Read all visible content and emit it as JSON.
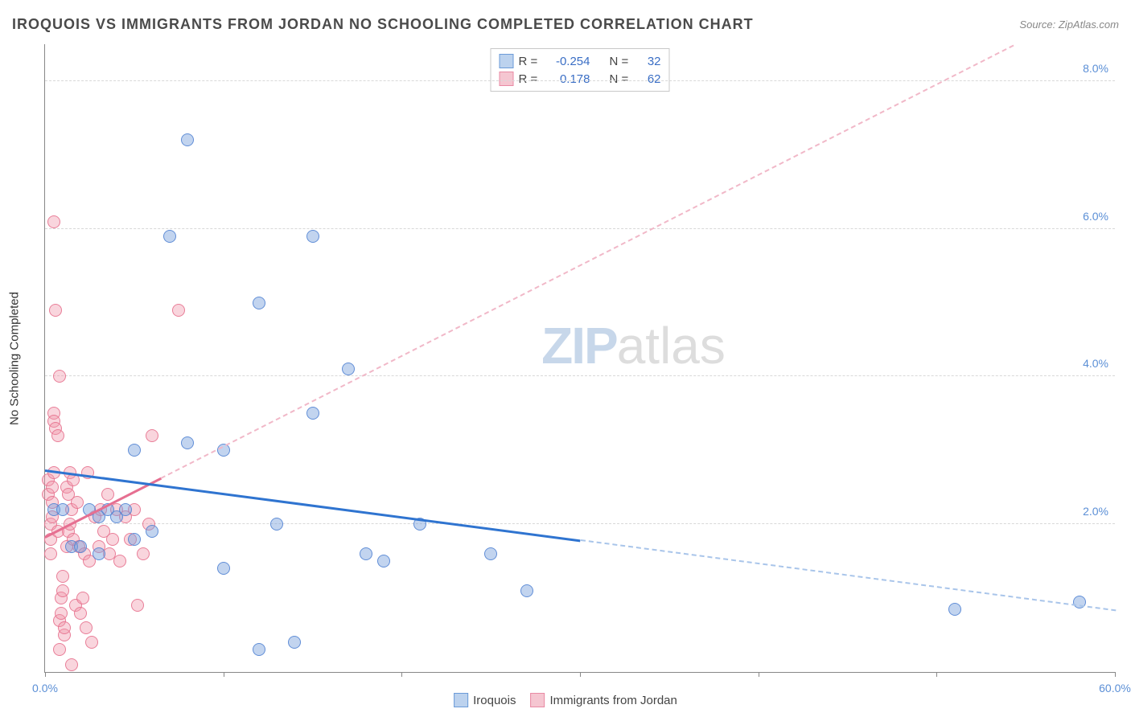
{
  "title": "IROQUOIS VS IMMIGRANTS FROM JORDAN NO SCHOOLING COMPLETED CORRELATION CHART",
  "source_label": "Source:",
  "source_name": "ZipAtlas.com",
  "y_axis_label": "No Schooling Completed",
  "watermark_bold": "ZIP",
  "watermark_rest": "atlas",
  "chart": {
    "type": "scatter",
    "background_color": "#ffffff",
    "grid_color": "#d8d8d8",
    "axis_color": "#888888",
    "xlim": [
      0,
      60
    ],
    "ylim": [
      0,
      8.5
    ],
    "x_ticks": [
      0,
      10,
      20,
      30,
      40,
      50,
      60
    ],
    "x_tick_labels": {
      "0": "0.0%",
      "60": "60.0%"
    },
    "y_ticks": [
      2,
      4,
      6,
      8
    ],
    "y_tick_labels": {
      "2": "2.0%",
      "4": "4.0%",
      "6": "6.0%",
      "8": "8.0%"
    },
    "tick_label_color": "#5b8fd6",
    "tick_fontsize": 14,
    "series": [
      {
        "name": "Iroquois",
        "marker_fill": "rgba(120,160,220,0.45)",
        "marker_stroke": "rgba(80,130,210,0.85)",
        "swatch_fill": "#bcd2ee",
        "swatch_stroke": "#6b9bd8",
        "trend_color": "#2f74d0",
        "trend_style": "solid",
        "trend_dash_color": "#a9c5ea",
        "r_value": "-0.254",
        "n_value": "32",
        "trendline": {
          "x1": 0,
          "y1": 2.75,
          "x2": 60,
          "y2": 0.85,
          "dash_from_x": 30
        },
        "points": [
          [
            0.5,
            2.2
          ],
          [
            1,
            2.2
          ],
          [
            1.5,
            1.7
          ],
          [
            2,
            1.7
          ],
          [
            2.5,
            2.2
          ],
          [
            3,
            2.1
          ],
          [
            3,
            1.6
          ],
          [
            3.5,
            2.2
          ],
          [
            4,
            2.1
          ],
          [
            4.5,
            2.2
          ],
          [
            5,
            1.8
          ],
          [
            5,
            3.0
          ],
          [
            6,
            1.9
          ],
          [
            7,
            5.9
          ],
          [
            8,
            7.2
          ],
          [
            8,
            3.1
          ],
          [
            10,
            3.0
          ],
          [
            10,
            1.4
          ],
          [
            12,
            5.0
          ],
          [
            12,
            0.3
          ],
          [
            13,
            2.0
          ],
          [
            14,
            0.4
          ],
          [
            15,
            5.9
          ],
          [
            15,
            3.5
          ],
          [
            17,
            4.1
          ],
          [
            18,
            1.6
          ],
          [
            19,
            1.5
          ],
          [
            21,
            2.0
          ],
          [
            25,
            1.6
          ],
          [
            27,
            1.1
          ],
          [
            51,
            0.85
          ],
          [
            58,
            0.95
          ]
        ]
      },
      {
        "name": "Immigrants from Jordan",
        "marker_fill": "rgba(240,150,170,0.40)",
        "marker_stroke": "rgba(230,110,140,0.85)",
        "swatch_fill": "#f5c6d1",
        "swatch_stroke": "#e98aa4",
        "trend_color": "#e66f91",
        "trend_style": "solid",
        "trend_dash_color": "#f1b8c8",
        "r_value": "0.178",
        "n_value": "62",
        "trendline": {
          "x1": 0,
          "y1": 1.85,
          "x2": 60,
          "y2": 9.2,
          "dash_from_x": 6.5
        },
        "points": [
          [
            0.2,
            2.6
          ],
          [
            0.2,
            2.4
          ],
          [
            0.3,
            1.6
          ],
          [
            0.3,
            1.8
          ],
          [
            0.3,
            2.0
          ],
          [
            0.4,
            2.1
          ],
          [
            0.4,
            2.3
          ],
          [
            0.4,
            2.5
          ],
          [
            0.5,
            2.7
          ],
          [
            0.5,
            6.1
          ],
          [
            0.5,
            3.5
          ],
          [
            0.5,
            3.4
          ],
          [
            0.6,
            3.3
          ],
          [
            0.6,
            4.9
          ],
          [
            0.7,
            3.2
          ],
          [
            0.7,
            1.9
          ],
          [
            0.8,
            0.3
          ],
          [
            0.8,
            4.0
          ],
          [
            0.8,
            0.7
          ],
          [
            0.9,
            0.8
          ],
          [
            0.9,
            1.0
          ],
          [
            1.0,
            1.1
          ],
          [
            1.0,
            1.3
          ],
          [
            1.1,
            0.5
          ],
          [
            1.1,
            0.6
          ],
          [
            1.2,
            2.5
          ],
          [
            1.2,
            1.7
          ],
          [
            1.3,
            2.4
          ],
          [
            1.3,
            1.9
          ],
          [
            1.4,
            2.0
          ],
          [
            1.4,
            2.7
          ],
          [
            1.5,
            2.2
          ],
          [
            1.5,
            0.1
          ],
          [
            1.6,
            2.6
          ],
          [
            1.6,
            1.8
          ],
          [
            1.7,
            0.9
          ],
          [
            1.8,
            2.3
          ],
          [
            1.9,
            1.7
          ],
          [
            2.0,
            0.8
          ],
          [
            2.1,
            1.0
          ],
          [
            2.2,
            1.6
          ],
          [
            2.3,
            0.6
          ],
          [
            2.4,
            2.7
          ],
          [
            2.5,
            1.5
          ],
          [
            2.6,
            0.4
          ],
          [
            2.8,
            2.1
          ],
          [
            3.0,
            1.7
          ],
          [
            3.1,
            2.2
          ],
          [
            3.3,
            1.9
          ],
          [
            3.5,
            2.4
          ],
          [
            3.6,
            1.6
          ],
          [
            3.8,
            1.8
          ],
          [
            4.0,
            2.2
          ],
          [
            4.2,
            1.5
          ],
          [
            4.5,
            2.1
          ],
          [
            4.8,
            1.8
          ],
          [
            5.0,
            2.2
          ],
          [
            5.5,
            1.6
          ],
          [
            6.0,
            3.2
          ],
          [
            7.5,
            4.9
          ],
          [
            5.2,
            0.9
          ],
          [
            5.8,
            2.0
          ]
        ]
      }
    ],
    "stats_labels": {
      "r": "R =",
      "n": "N ="
    }
  }
}
